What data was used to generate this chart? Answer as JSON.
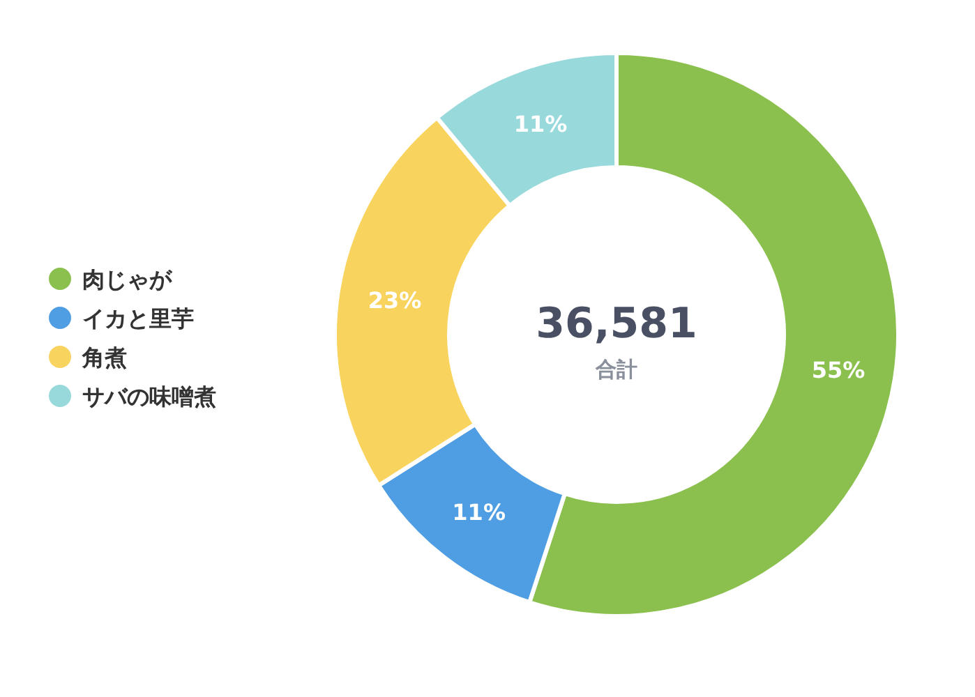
{
  "chart_data": {
    "type": "donut",
    "categories": [
      "肉じゃが",
      "イカと里芋",
      "角煮",
      "サバの味噌煮"
    ],
    "values": [
      55,
      11,
      23,
      11
    ],
    "value_labels": [
      "55%",
      "11%",
      "23%",
      "11%"
    ],
    "colors": [
      "#8bc04e",
      "#4f9ee3",
      "#f8d35e",
      "#98d9db"
    ],
    "annotations": [
      "36,581",
      "合計"
    ],
    "legend": "left"
  }
}
